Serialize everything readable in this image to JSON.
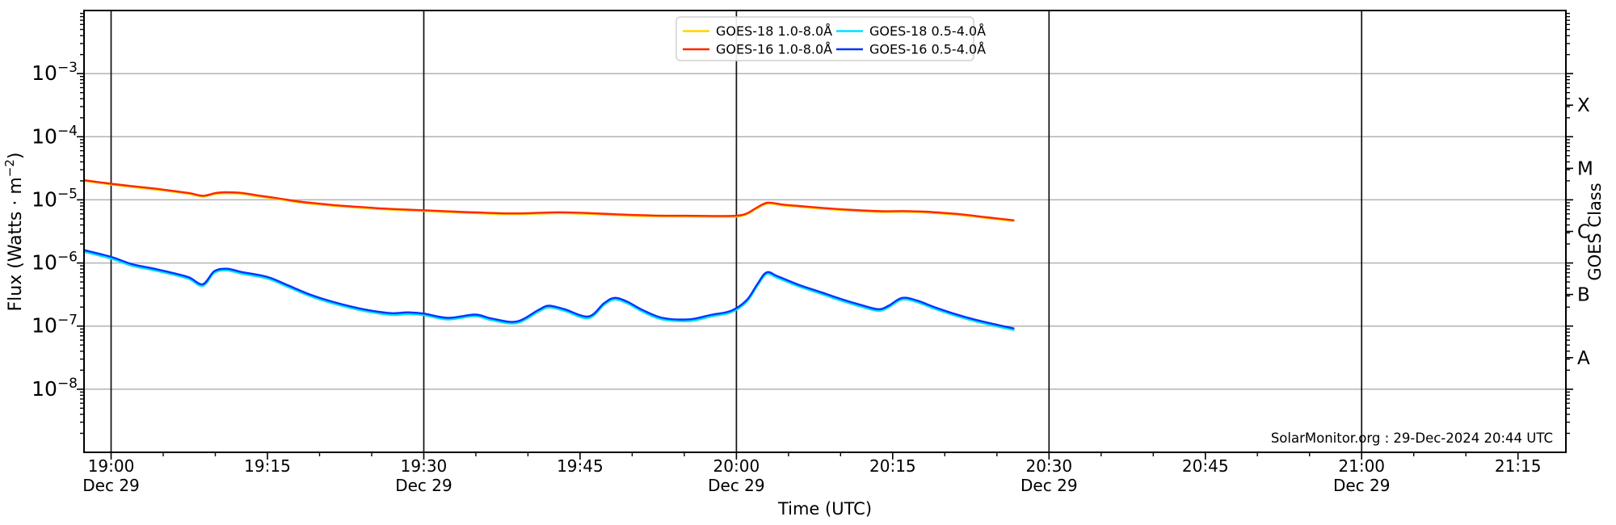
{
  "chart_data": {
    "type": "line",
    "title": "",
    "xlabel": "Time (UTC)",
    "ylabel": "Flux (Watts · m⁻²)",
    "ylabel_parts": {
      "base": "Flux (Watts · m",
      "sup": "−2",
      "close": ")"
    },
    "ylabel_right": "GOES Class",
    "annotation": "SolarMonitor.org : 29-Dec-2024 20:44 UTC",
    "x_axis_date": "Dec 29",
    "xlim_minutes_from_1900utc": [
      -2.6,
      139.6
    ],
    "ylim": [
      1e-09,
      0.01
    ],
    "grid": "on",
    "legend_position": "top-center",
    "x_major_ticks": [
      {
        "t": 0,
        "label": "19:00",
        "sublabel": "Dec 29"
      },
      {
        "t": 15,
        "label": "19:15"
      },
      {
        "t": 30,
        "label": "19:30",
        "sublabel": "Dec 29"
      },
      {
        "t": 45,
        "label": "19:45"
      },
      {
        "t": 60,
        "label": "20:00",
        "sublabel": "Dec 29"
      },
      {
        "t": 75,
        "label": "20:15"
      },
      {
        "t": 90,
        "label": "20:30",
        "sublabel": "Dec 29"
      },
      {
        "t": 105,
        "label": "20:45"
      },
      {
        "t": 120,
        "label": "21:00",
        "sublabel": "Dec 29"
      },
      {
        "t": 135,
        "label": "21:15"
      }
    ],
    "x_minor_step_minutes": 5,
    "y_major_tick_exponents": [
      -3,
      -4,
      -5,
      -6,
      -7,
      -8
    ],
    "grid_vertical_minutes": [
      0,
      30,
      60,
      90,
      120
    ],
    "goes_classes": [
      {
        "label": "X",
        "exponent": -3.5
      },
      {
        "label": "M",
        "exponent": -4.5
      },
      {
        "label": "C",
        "exponent": -5.5
      },
      {
        "label": "B",
        "exponent": -6.5
      },
      {
        "label": "A",
        "exponent": -7.5
      }
    ],
    "colors": {
      "goes18_long": "#ffd300",
      "goes16_long": "#ff2800",
      "goes18_short": "#00e0ff",
      "goes16_short": "#0535ff",
      "h_grid": "#b3b3b3",
      "v_grid": "#111111",
      "spine": "#000000"
    },
    "draw_order": [
      0,
      2,
      1,
      3
    ],
    "series": [
      {
        "name": "GOES-18 1.0-8.0Å",
        "color_key": "goes18_long",
        "points": [
          [
            -2.6,
            1.99e-05
          ],
          [
            0,
            1.75e-05
          ],
          [
            2,
            1.6e-05
          ],
          [
            4,
            1.47e-05
          ],
          [
            6,
            1.34e-05
          ],
          [
            7.5,
            1.24e-05
          ],
          [
            8.8,
            1.13e-05
          ],
          [
            10,
            1.24e-05
          ],
          [
            11,
            1.27e-05
          ],
          [
            12.5,
            1.25e-05
          ],
          [
            14,
            1.14e-05
          ],
          [
            16,
            1.03e-05
          ],
          [
            18,
            9.12e-06
          ],
          [
            20,
            8.44e-06
          ],
          [
            22,
            7.86e-06
          ],
          [
            24,
            7.47e-06
          ],
          [
            26,
            7.08e-06
          ],
          [
            28,
            6.84e-06
          ],
          [
            30,
            6.64e-06
          ],
          [
            33,
            6.31e-06
          ],
          [
            36,
            6.06e-06
          ],
          [
            38,
            5.92e-06
          ],
          [
            40,
            5.97e-06
          ],
          [
            43,
            6.16e-06
          ],
          [
            46,
            5.97e-06
          ],
          [
            49,
            5.67e-06
          ],
          [
            52,
            5.48e-06
          ],
          [
            55,
            5.43e-06
          ],
          [
            58,
            5.38e-06
          ],
          [
            60,
            5.43e-06
          ],
          [
            61,
            5.92e-06
          ],
          [
            62,
            7.37e-06
          ],
          [
            63,
            8.73e-06
          ],
          [
            64.5,
            8.15e-06
          ],
          [
            66,
            7.76e-06
          ],
          [
            68,
            7.28e-06
          ],
          [
            70,
            6.89e-06
          ],
          [
            72,
            6.6e-06
          ],
          [
            74,
            6.4e-06
          ],
          [
            76,
            6.45e-06
          ],
          [
            78,
            6.31e-06
          ],
          [
            80,
            6.01e-06
          ],
          [
            82,
            5.63e-06
          ],
          [
            84,
            5.14e-06
          ],
          [
            86.6,
            4.61e-06
          ]
        ]
      },
      {
        "name": "GOES-16 1.0-8.0Å",
        "color_key": "goes16_long",
        "points": [
          [
            -2.6,
            2.05e-05
          ],
          [
            0,
            1.8e-05
          ],
          [
            2,
            1.65e-05
          ],
          [
            4,
            1.52e-05
          ],
          [
            6,
            1.38e-05
          ],
          [
            7.5,
            1.28e-05
          ],
          [
            8.8,
            1.16e-05
          ],
          [
            10,
            1.28e-05
          ],
          [
            11,
            1.32e-05
          ],
          [
            12.5,
            1.29e-05
          ],
          [
            14,
            1.18e-05
          ],
          [
            16,
            1.06e-05
          ],
          [
            18,
            9.4e-06
          ],
          [
            20,
            8.7e-06
          ],
          [
            22,
            8.1e-06
          ],
          [
            24,
            7.7e-06
          ],
          [
            26,
            7.3e-06
          ],
          [
            28,
            7.05e-06
          ],
          [
            30,
            6.85e-06
          ],
          [
            33,
            6.5e-06
          ],
          [
            36,
            6.25e-06
          ],
          [
            38,
            6.1e-06
          ],
          [
            40,
            6.15e-06
          ],
          [
            43,
            6.35e-06
          ],
          [
            46,
            6.15e-06
          ],
          [
            49,
            5.85e-06
          ],
          [
            52,
            5.65e-06
          ],
          [
            55,
            5.6e-06
          ],
          [
            58,
            5.55e-06
          ],
          [
            60,
            5.6e-06
          ],
          [
            61,
            6.1e-06
          ],
          [
            62,
            7.6e-06
          ],
          [
            63,
            9e-06
          ],
          [
            64.5,
            8.4e-06
          ],
          [
            66,
            8e-06
          ],
          [
            68,
            7.5e-06
          ],
          [
            70,
            7.1e-06
          ],
          [
            72,
            6.8e-06
          ],
          [
            74,
            6.6e-06
          ],
          [
            76,
            6.65e-06
          ],
          [
            78,
            6.5e-06
          ],
          [
            80,
            6.2e-06
          ],
          [
            82,
            5.8e-06
          ],
          [
            84,
            5.3e-06
          ],
          [
            86.6,
            4.75e-06
          ]
        ]
      },
      {
        "name": "GOES-18 0.5-4.0Å",
        "color_key": "goes18_short",
        "points": [
          [
            -2.6,
            1.5e-06
          ],
          [
            0,
            1.17e-06
          ],
          [
            2,
            9.02e-07
          ],
          [
            4,
            7.71e-07
          ],
          [
            6,
            6.49e-07
          ],
          [
            7.5,
            5.55e-07
          ],
          [
            8.8,
            4.32e-07
          ],
          [
            9.9,
            6.96e-07
          ],
          [
            11.1,
            7.61e-07
          ],
          [
            12.5,
            6.77e-07
          ],
          [
            15,
            5.64e-07
          ],
          [
            17,
            4.14e-07
          ],
          [
            19,
            3.01e-07
          ],
          [
            21,
            2.35e-07
          ],
          [
            23,
            1.93e-07
          ],
          [
            25,
            1.65e-07
          ],
          [
            27,
            1.5e-07
          ],
          [
            28.5,
            1.55e-07
          ],
          [
            30,
            1.49e-07
          ],
          [
            32.3,
            1.27e-07
          ],
          [
            34.9,
            1.43e-07
          ],
          [
            36.5,
            1.24e-07
          ],
          [
            38.9,
            1.11e-07
          ],
          [
            41,
            1.69e-07
          ],
          [
            42,
            1.97e-07
          ],
          [
            43.5,
            1.74e-07
          ],
          [
            45.8,
            1.33e-07
          ],
          [
            47.3,
            2.16e-07
          ],
          [
            48.3,
            2.63e-07
          ],
          [
            49.5,
            2.3e-07
          ],
          [
            51,
            1.69e-07
          ],
          [
            52.9,
            1.27e-07
          ],
          [
            55.5,
            1.2e-07
          ],
          [
            57.5,
            1.41e-07
          ],
          [
            59.5,
            1.65e-07
          ],
          [
            61,
            2.44e-07
          ],
          [
            62,
            4.32e-07
          ],
          [
            62.9,
            6.67e-07
          ],
          [
            64,
            5.73e-07
          ],
          [
            66,
            4.23e-07
          ],
          [
            68,
            3.29e-07
          ],
          [
            70,
            2.54e-07
          ],
          [
            72,
            2.02e-07
          ],
          [
            73.6,
            1.74e-07
          ],
          [
            74.6,
            1.97e-07
          ],
          [
            75.9,
            2.63e-07
          ],
          [
            77.3,
            2.4e-07
          ],
          [
            79,
            1.88e-07
          ],
          [
            81,
            1.46e-07
          ],
          [
            83,
            1.18e-07
          ],
          [
            85,
            9.87e-08
          ],
          [
            86.6,
            8.65e-08
          ]
        ]
      },
      {
        "name": "GOES-16 0.5-4.0Å",
        "color_key": "goes16_short",
        "points": [
          [
            -2.6,
            1.6e-06
          ],
          [
            0,
            1.25e-06
          ],
          [
            2,
            9.6e-07
          ],
          [
            4,
            8.2e-07
          ],
          [
            6,
            6.9e-07
          ],
          [
            7.5,
            5.9e-07
          ],
          [
            8.8,
            4.6e-07
          ],
          [
            9.9,
            7.4e-07
          ],
          [
            11.1,
            8.1e-07
          ],
          [
            12.5,
            7.2e-07
          ],
          [
            15,
            6e-07
          ],
          [
            17,
            4.4e-07
          ],
          [
            19,
            3.2e-07
          ],
          [
            21,
            2.5e-07
          ],
          [
            23,
            2.05e-07
          ],
          [
            25,
            1.75e-07
          ],
          [
            27,
            1.6e-07
          ],
          [
            28.5,
            1.65e-07
          ],
          [
            30,
            1.58e-07
          ],
          [
            32.3,
            1.35e-07
          ],
          [
            34.9,
            1.52e-07
          ],
          [
            36.5,
            1.32e-07
          ],
          [
            38.9,
            1.18e-07
          ],
          [
            41,
            1.8e-07
          ],
          [
            42,
            2.1e-07
          ],
          [
            43.5,
            1.85e-07
          ],
          [
            45.8,
            1.42e-07
          ],
          [
            47.3,
            2.3e-07
          ],
          [
            48.3,
            2.8e-07
          ],
          [
            49.5,
            2.45e-07
          ],
          [
            51,
            1.8e-07
          ],
          [
            52.9,
            1.35e-07
          ],
          [
            55.5,
            1.28e-07
          ],
          [
            57.5,
            1.5e-07
          ],
          [
            59.5,
            1.75e-07
          ],
          [
            61,
            2.6e-07
          ],
          [
            62,
            4.6e-07
          ],
          [
            62.9,
            7.1e-07
          ],
          [
            64,
            6.1e-07
          ],
          [
            66,
            4.5e-07
          ],
          [
            68,
            3.5e-07
          ],
          [
            70,
            2.7e-07
          ],
          [
            72,
            2.15e-07
          ],
          [
            73.6,
            1.85e-07
          ],
          [
            74.6,
            2.1e-07
          ],
          [
            75.9,
            2.8e-07
          ],
          [
            77.3,
            2.55e-07
          ],
          [
            79,
            2e-07
          ],
          [
            81,
            1.55e-07
          ],
          [
            83,
            1.25e-07
          ],
          [
            85,
            1.05e-07
          ],
          [
            86.6,
            9.2e-08
          ]
        ]
      }
    ]
  }
}
